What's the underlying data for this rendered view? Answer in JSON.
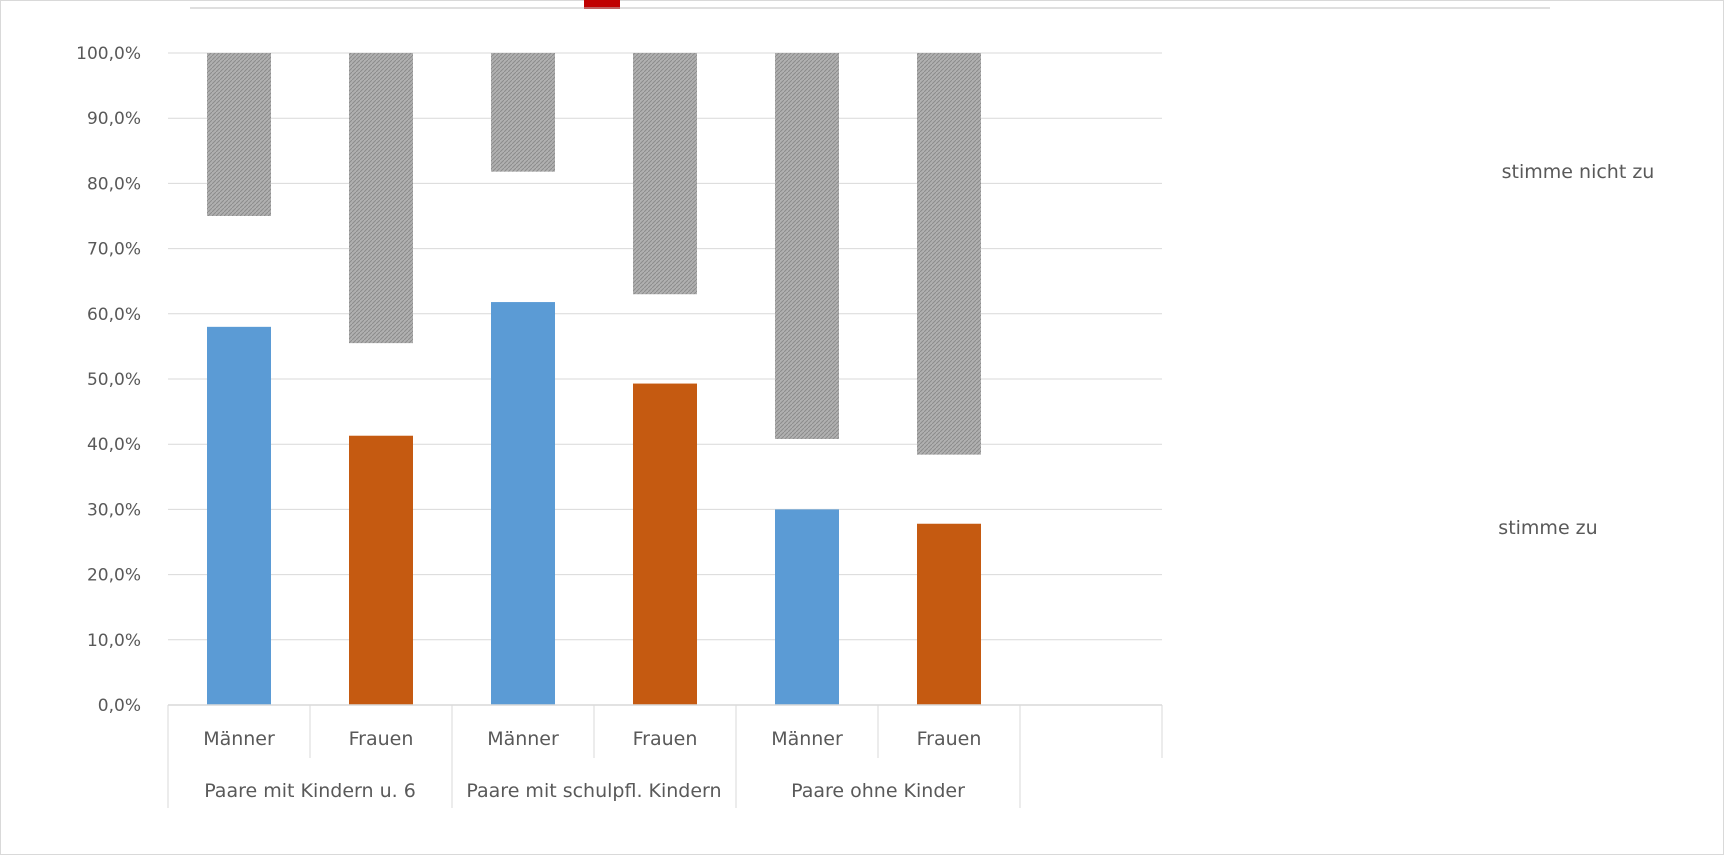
{
  "chart_data": {
    "type": "bar",
    "title": "",
    "xlabel": "",
    "ylabel": "",
    "ylim": [
      0,
      100
    ],
    "yticks": [
      "0,0%",
      "10,0%",
      "20,0%",
      "30,0%",
      "40,0%",
      "50,0%",
      "60,0%",
      "70,0%",
      "80,0%",
      "90,0%",
      "100,0%"
    ],
    "grid": true,
    "groups": [
      "Paare mit Kindern u. 6",
      "Paare mit schulpfl. Kindern",
      "Paare ohne Kinder"
    ],
    "categories": [
      "Männer",
      "Frauen",
      "Männer",
      "Frauen",
      "Männer",
      "Frauen"
    ],
    "series": [
      {
        "name": "stimme zu",
        "values": [
          58.0,
          41.3,
          61.8,
          49.3,
          30.0,
          27.8
        ]
      },
      {
        "name": "stimme nicht zu",
        "values": [
          25.0,
          44.5,
          18.2,
          37.0,
          59.2,
          61.6
        ]
      }
    ],
    "colors": {
      "maenner": "#5b9bd5",
      "frauen": "#c55a11",
      "stimme_nicht_zu": "#a6a6a6",
      "grid": "#d9d9d9",
      "axis_text": "#595959",
      "title_accent": "#c00000"
    },
    "legend_placement": "right"
  }
}
